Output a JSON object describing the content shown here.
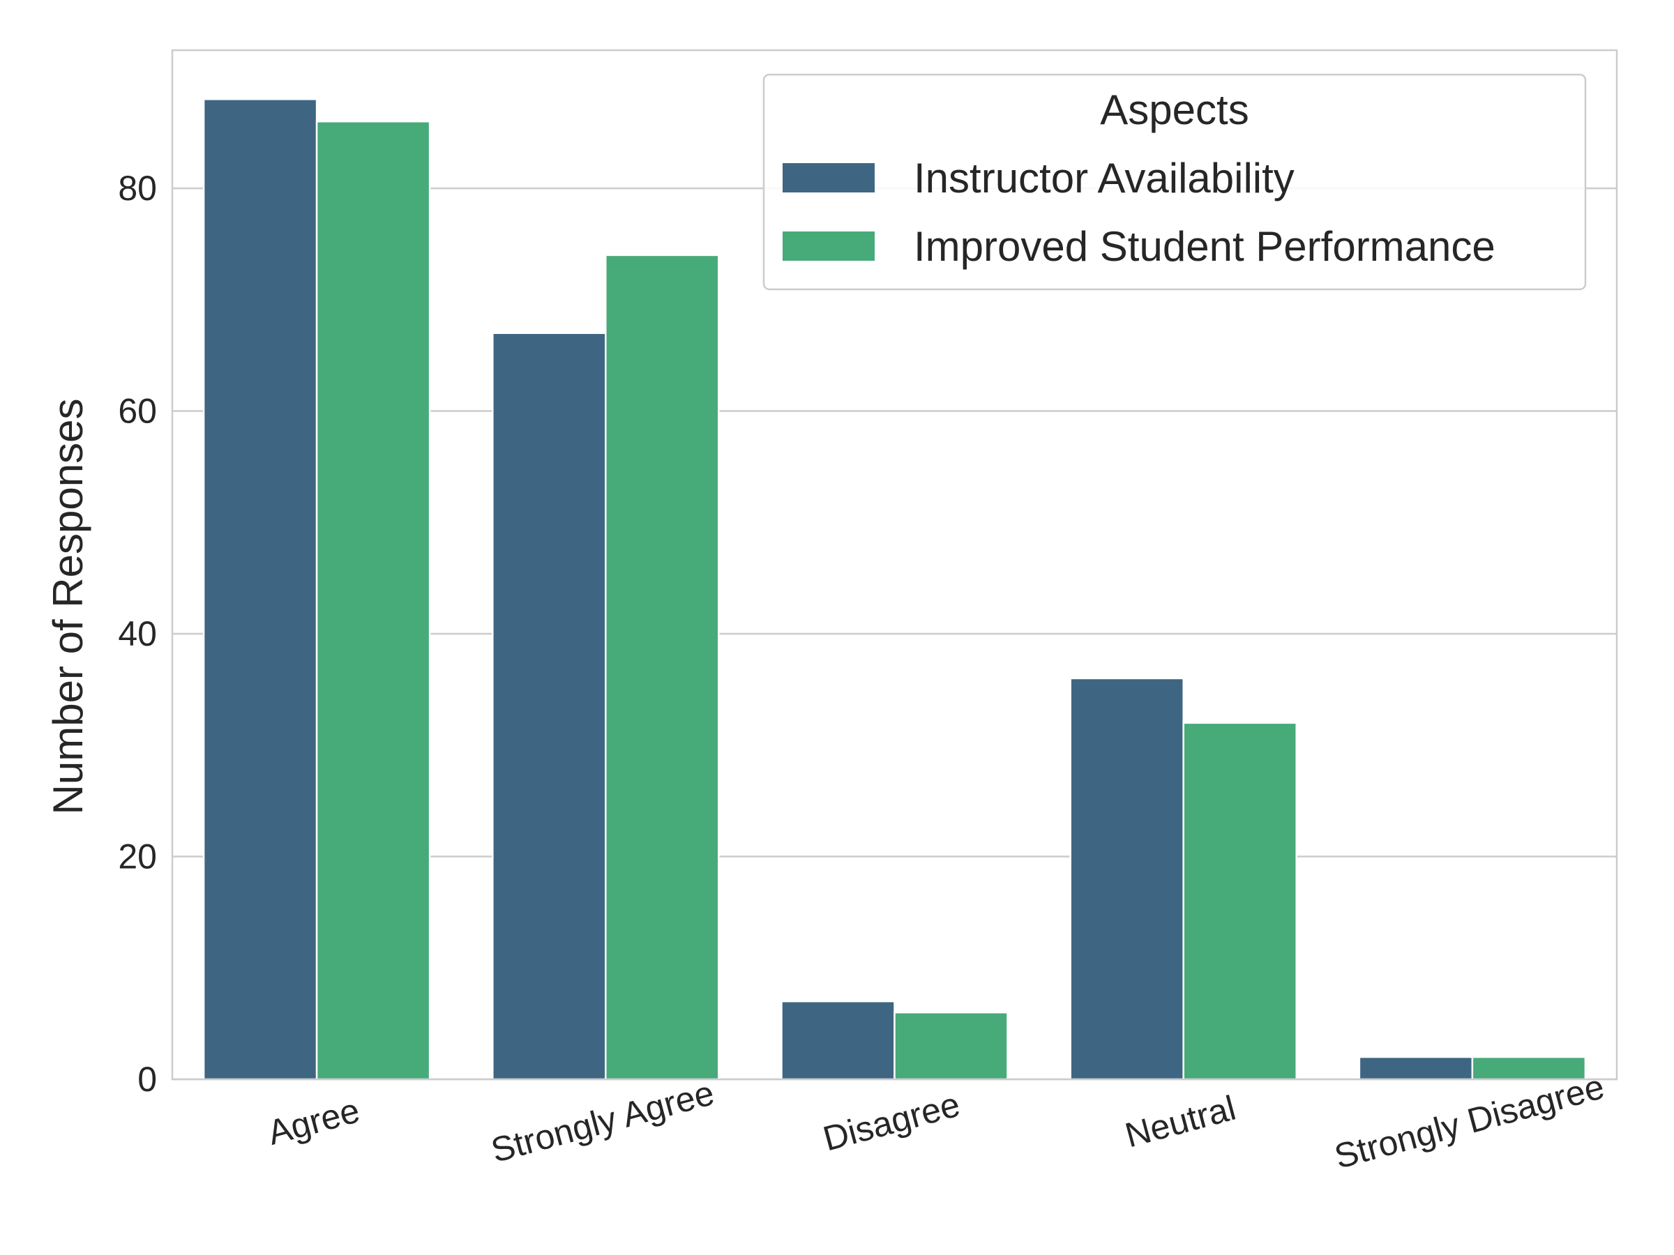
{
  "chart_data": {
    "type": "bar",
    "categories": [
      "Agree",
      "Strongly Agree",
      "Disagree",
      "Neutral",
      "Strongly Disagree"
    ],
    "series": [
      {
        "name": "Instructor Availability",
        "values": [
          88,
          67,
          7,
          36,
          2
        ],
        "color": "#3e6683"
      },
      {
        "name": "Improved Student Performance",
        "values": [
          86,
          74,
          6,
          32,
          2
        ],
        "color": "#47aa79"
      }
    ],
    "xlabel": "",
    "ylabel": "Number of Responses",
    "ylim": [
      0,
      92.4
    ],
    "yticks": [
      "0",
      "20",
      "40",
      "60",
      "80"
    ],
    "grid": "horizontal",
    "legend": {
      "title": "Aspects",
      "placement": "top-right"
    },
    "colors": {
      "grid": "#cccccc",
      "frame": "#cccccc",
      "text": "#262626"
    }
  }
}
